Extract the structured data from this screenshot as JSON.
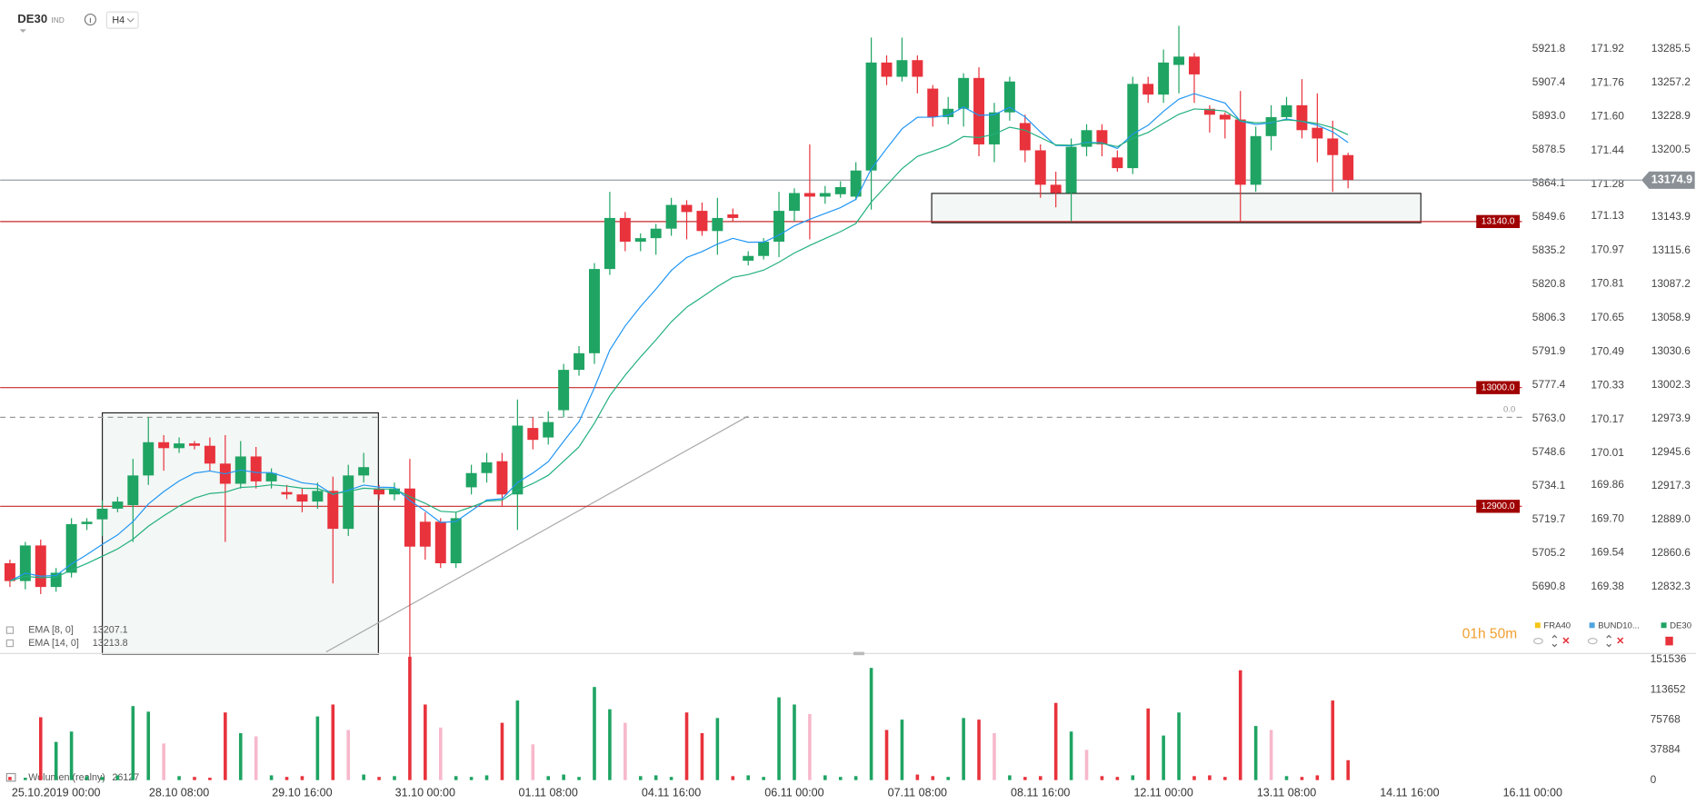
{
  "chart_data": {
    "type": "candlestick",
    "symbol": "DE30",
    "symbol_tag": "IND",
    "interval": "H4",
    "up_color": "#1fa463",
    "down_color": "#e8323c",
    "x_labels": [
      "25.10.2019 00:00",
      "28.10 08:00",
      "29.10 16:00",
      "31.10 00:00",
      "01.11 08:00",
      "04.11 16:00",
      "06.11 00:00",
      "07.11 08:00",
      "08.11 16:00",
      "12.11 00:00",
      "13.11 08:00",
      "14.11 16:00",
      "16.11 00:00"
    ],
    "open": [
      12852,
      12837,
      12867,
      12832,
      12844,
      12885,
      12889,
      12898,
      12901,
      12926,
      12954,
      12949,
      12953,
      12951,
      12936,
      12919,
      12942,
      12921,
      12912,
      12910,
      12904,
      12913,
      12881,
      12926,
      12915,
      12910,
      12915,
      12887,
      12887,
      12852,
      12916,
      12928,
      12938,
      12910,
      12966,
      12958,
      12981,
      13015,
      13029,
      13100,
      13143,
      13123,
      13126,
      13134,
      13154,
      13149,
      13132,
      13146,
      13107,
      13111,
      13123,
      13149,
      13164,
      13161,
      13163,
      13161,
      13183,
      13274,
      13262,
      13276,
      13252,
      13228,
      13235,
      13261,
      13205,
      13232,
      13223,
      13200,
      13171,
      13164,
      13203,
      13217,
      13194,
      13185,
      13256,
      13247,
      13272,
      13279,
      13235,
      13230,
      13226,
      13171,
      13212,
      13228,
      13238,
      13219,
      13210,
      13196
    ],
    "high": [
      12855,
      12870,
      12872,
      12848,
      12890,
      12890,
      12905,
      12908,
      12940,
      12975,
      12960,
      12958,
      12955,
      12958,
      12960,
      12955,
      12950,
      12932,
      12918,
      12915,
      12920,
      12925,
      12935,
      12945,
      12918,
      12920,
      12940,
      12895,
      12890,
      12895,
      12935,
      12945,
      12945,
      12990,
      12975,
      12980,
      13020,
      13035,
      13105,
      13165,
      13148,
      13130,
      13138,
      13160,
      13158,
      13156,
      13160,
      13151,
      13115,
      13126,
      13165,
      13168,
      13205,
      13170,
      13174,
      13190,
      13295,
      13280,
      13295,
      13280,
      13255,
      13245,
      13265,
      13270,
      13240,
      13262,
      13230,
      13205,
      13182,
      13210,
      13222,
      13222,
      13200,
      13262,
      13262,
      13285,
      13305,
      13282,
      13238,
      13232,
      13250,
      13220,
      13238,
      13245,
      13260,
      13248,
      13225,
      13198
    ],
    "low": [
      12832,
      12830,
      12826,
      12828,
      12840,
      12880,
      12875,
      12895,
      12870,
      12918,
      12930,
      12945,
      12948,
      12930,
      12870,
      12915,
      12915,
      12915,
      12906,
      12895,
      12898,
      12835,
      12875,
      12920,
      12905,
      12905,
      12760,
      12855,
      12848,
      12848,
      12910,
      12920,
      12900,
      12880,
      12948,
      12952,
      12975,
      13010,
      13020,
      13095,
      13115,
      13115,
      13112,
      13128,
      13125,
      13128,
      13112,
      13140,
      13103,
      13108,
      13110,
      13140,
      13125,
      13155,
      13160,
      13158,
      13150,
      13255,
      13258,
      13248,
      13220,
      13222,
      13220,
      13195,
      13190,
      13225,
      13190,
      13160,
      13152,
      13140,
      13195,
      13195,
      13182,
      13180,
      13240,
      13240,
      13248,
      13240,
      13215,
      13210,
      13140,
      13165,
      13200,
      13225,
      13210,
      13190,
      13165,
      13168
    ],
    "close": [
      12837,
      12867,
      12832,
      12844,
      12885,
      12887,
      12898,
      12904,
      12926,
      12954,
      12949,
      12953,
      12951,
      12936,
      12919,
      12942,
      12921,
      12928,
      12910,
      12904,
      12913,
      12881,
      12926,
      12933,
      12910,
      12915,
      12866,
      12866,
      12852,
      12890,
      12928,
      12937,
      12910,
      12968,
      12956,
      12971,
      13015,
      13029,
      13100,
      13143,
      13123,
      13126,
      13134,
      13154,
      13148,
      13132,
      13143,
      13143,
      13111,
      13123,
      13149,
      13164,
      13161,
      13164,
      13169,
      13183,
      13274,
      13262,
      13276,
      13262,
      13228,
      13235,
      13261,
      13205,
      13232,
      13258,
      13200,
      13171,
      13164,
      13203,
      13217,
      13205,
      13185,
      13256,
      13247,
      13274,
      13279,
      13264,
      13230,
      13226,
      13171,
      13212,
      13228,
      13238,
      13217,
      13210,
      13196,
      13175
    ],
    "ylim": [
      12777.3,
      13326.7
    ],
    "yticks": [
      13285.5,
      13257.2,
      13228.9,
      13200.5,
      13143.9,
      13115.6,
      13087.2,
      13058.9,
      13030.6,
      13002.3,
      12973.9,
      12945.6,
      12917.3,
      {
        "value": 12889.0,
        "label": "12889.0"
      },
      12860.6,
      12832.3
    ],
    "current_price": 13174.9,
    "levels": [
      {
        "value": 13140,
        "label": "13140.0"
      },
      {
        "value": 13000,
        "label": "13000.0"
      },
      {
        "value": 12900,
        "label": "12900.0"
      }
    ],
    "fib": {
      "value": 12975,
      "label": "0.0"
    },
    "overlays": [
      {
        "label": "EMA [8, 0]",
        "period": 8,
        "last": 13207.1,
        "color": "#2196f3"
      },
      {
        "label": "EMA [14, 0]",
        "period": 14,
        "last": 13213.8,
        "color": "#22b07d"
      }
    ],
    "fra40_axis": {
      "ylim": [
        5662.8,
        5942.8
      ],
      "yticks": [
        5921.8,
        5907.4,
        {
          "value": 5893.0,
          "label": "5893.0"
        },
        5878.5,
        5864.1,
        5849.6,
        5835.2,
        5820.8,
        5806.3,
        5791.9,
        5777.4,
        {
          "value": 5763.0,
          "label": "5763.0"
        },
        5748.6,
        5734.1,
        5719.7,
        5705.2,
        5690.8
      ]
    },
    "bund_axis": {
      "ylim": [
        169.072,
        172.151
      ],
      "yticks": [
        171.92,
        171.76,
        {
          "value": 171.6,
          "label": "171.60"
        },
        171.44,
        171.28,
        171.13,
        170.97,
        170.81,
        170.65,
        170.49,
        170.33,
        170.17,
        170.01,
        169.86,
        {
          "value": 169.7,
          "label": "169.70"
        },
        169.54,
        169.38
      ]
    },
    "instruments": [
      {
        "name": "FRA40",
        "color": "#f5c518"
      },
      {
        "name": "BUND10...",
        "color": "#4fa3e0"
      },
      {
        "name": "DE30",
        "color": "#1fa463"
      }
    ],
    "timer": "01h 50m",
    "volume": {
      "label": "Wolumen (realny)",
      "last": 26127,
      "ylim": [
        0,
        151536
      ],
      "yticks": [
        151536,
        113652,
        75768,
        37884,
        0
      ],
      "values": [
        4000,
        3000,
        79000,
        48000,
        61000,
        5000,
        4000,
        6000,
        93000,
        86000,
        46000,
        5000,
        4000,
        3000,
        85000,
        59000,
        55000,
        6000,
        4000,
        5000,
        80000,
        95000,
        63000,
        7000,
        4000,
        5000,
        155000,
        95000,
        66000,
        5000,
        4000,
        6000,
        72000,
        100000,
        45000,
        5000,
        7000,
        4000,
        117000,
        89000,
        72000,
        5000,
        6000,
        4000,
        85000,
        59000,
        78000,
        5000,
        6000,
        4000,
        104000,
        95000,
        83000,
        6000,
        4000,
        5000,
        141000,
        63000,
        76000,
        7000,
        5000,
        4000,
        78000,
        76000,
        59000,
        6000,
        4000,
        5000,
        97000,
        61000,
        38000,
        5000,
        4000,
        6000,
        90000,
        56000,
        85000,
        5000,
        6000,
        4000,
        138000,
        68000,
        63000,
        5000,
        4000,
        6000,
        100000,
        25000
      ],
      "colors": [
        "#e8323c",
        "#1fa463",
        "#e8323c",
        "#1fa463",
        "#1fa463",
        "#1fa463",
        "#1fa463",
        "#1fa463",
        "#1fa463",
        "#1fa463",
        "#f7b8cb",
        "#1fa463",
        "#e8323c",
        "#e8323c",
        "#e8323c",
        "#1fa463",
        "#f7b8cb",
        "#1fa463",
        "#e8323c",
        "#e8323c",
        "#1fa463",
        "#e8323c",
        "#f7b8cb",
        "#1fa463",
        "#e8323c",
        "#1fa463",
        "#e8323c",
        "#e8323c",
        "#f7b8cb",
        "#1fa463",
        "#1fa463",
        "#1fa463",
        "#e8323c",
        "#1fa463",
        "#f7b8cb",
        "#1fa463",
        "#1fa463",
        "#1fa463",
        "#1fa463",
        "#1fa463",
        "#f7b8cb",
        "#1fa463",
        "#1fa463",
        "#1fa463",
        "#e8323c",
        "#e8323c",
        "#1fa463",
        "#e8323c",
        "#1fa463",
        "#1fa463",
        "#1fa463",
        "#1fa463",
        "#f7b8cb",
        "#1fa463",
        "#1fa463",
        "#1fa463",
        "#1fa463",
        "#e8323c",
        "#1fa463",
        "#e8323c",
        "#e8323c",
        "#1fa463",
        "#1fa463",
        "#e8323c",
        "#f7b8cb",
        "#1fa463",
        "#e8323c",
        "#e8323c",
        "#e8323c",
        "#1fa463",
        "#f7b8cb",
        "#e8323c",
        "#e8323c",
        "#1fa463",
        "#e8323c",
        "#1fa463",
        "#1fa463",
        "#e8323c",
        "#e8323c",
        "#e8323c",
        "#e8323c",
        "#1fa463",
        "#f7b8cb",
        "#1fa463",
        "#e8323c",
        "#e8323c",
        "#e8323c",
        "#e8323c"
      ]
    }
  }
}
